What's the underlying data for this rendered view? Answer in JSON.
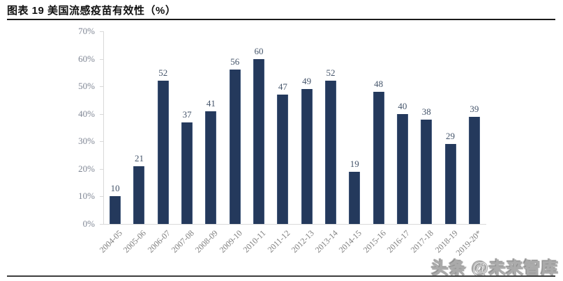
{
  "header": {
    "title": "图表  19 美国流感疫苗有效性（%）"
  },
  "watermark": {
    "text": "头条 @未来智库"
  },
  "chart_data": {
    "type": "bar",
    "title": "图表 19 美国流感疫苗有效性（%）",
    "categories": [
      "2004-05",
      "2005-06",
      "2006-07",
      "2007-08",
      "2008-09",
      "2009-10",
      "2010-11",
      "2011-12",
      "2012-13",
      "2013-14",
      "2014-15",
      "2015-16",
      "2016-17",
      "2017-18",
      "2018-19",
      "2019-20*"
    ],
    "values": [
      10,
      21,
      52,
      37,
      41,
      56,
      60,
      47,
      49,
      52,
      19,
      48,
      40,
      38,
      29,
      39
    ],
    "xlabel": "",
    "ylabel": "",
    "ylim": [
      0,
      70
    ],
    "ytick_step": 10,
    "ytick_labels": [
      "0%",
      "10%",
      "20%",
      "30%",
      "40%",
      "50%",
      "60%",
      "70%"
    ],
    "grid": false,
    "legend": "none",
    "bar_color": "#24395c",
    "value_label_color": "#44546a",
    "tick_label_color": "#7f8694",
    "axis_color": "#d9d9d9"
  }
}
